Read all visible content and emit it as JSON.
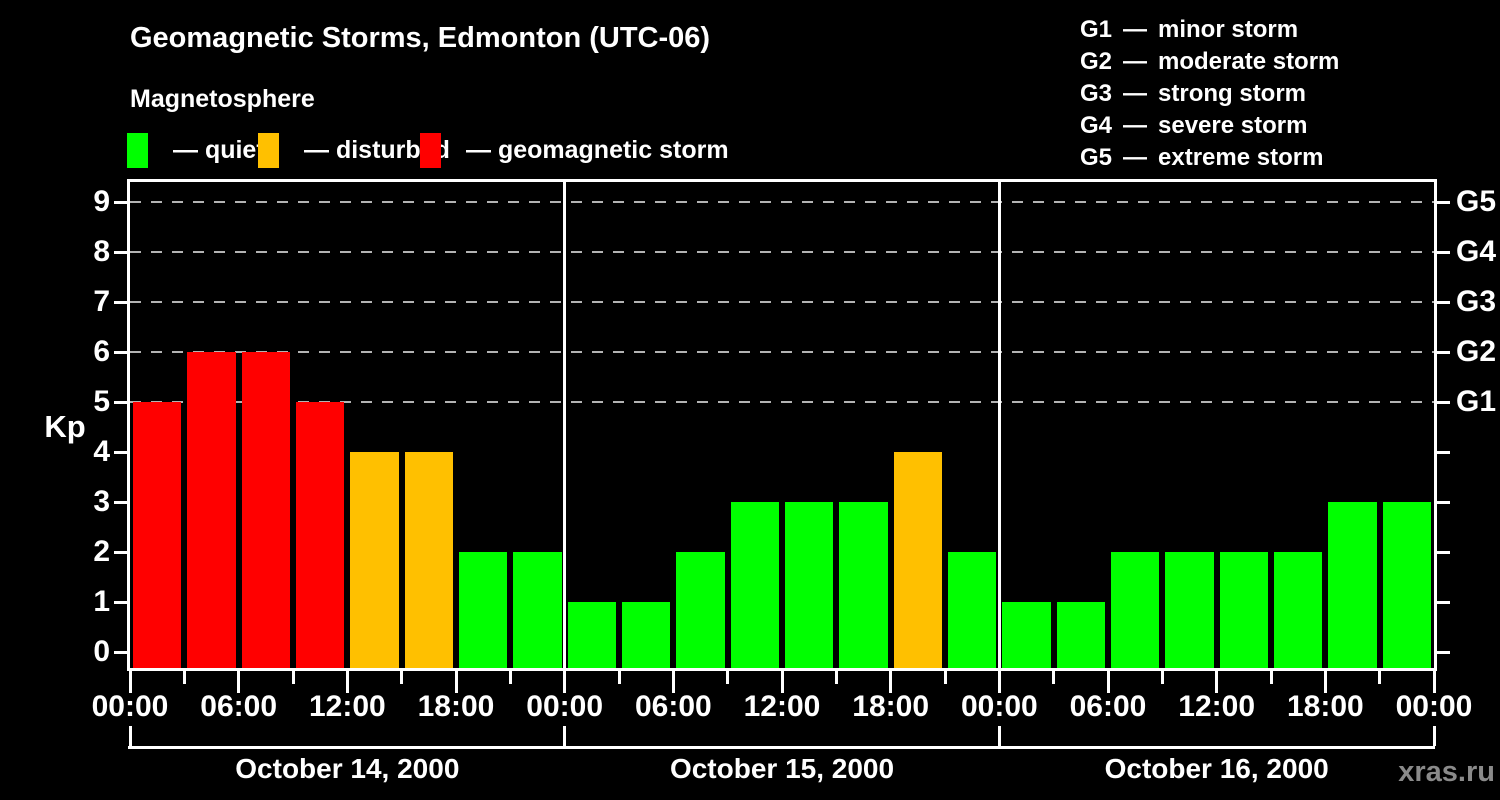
{
  "ui": {
    "title": "Geomagnetic Storms, Edmonton (UTC-06)",
    "subtitle": "Magnetosphere",
    "kp_axis_label": "Kp",
    "dash": "—",
    "watermark": "xras.ru"
  },
  "legend": {
    "items": [
      {
        "name": "quiet",
        "label": "— quiet",
        "color": "#00ff00"
      },
      {
        "name": "disturbed",
        "label": "— disturbed",
        "color": "#ffc000"
      },
      {
        "name": "storm",
        "label": "— geomagnetic storm",
        "color": "#ff0000"
      }
    ]
  },
  "g_scale": [
    {
      "code": "G1",
      "desc": "minor storm",
      "kp": 5
    },
    {
      "code": "G2",
      "desc": "moderate storm",
      "kp": 6
    },
    {
      "code": "G3",
      "desc": "strong storm",
      "kp": 7
    },
    {
      "code": "G4",
      "desc": "severe storm",
      "kp": 8
    },
    {
      "code": "G5",
      "desc": "extreme storm",
      "kp": 9
    }
  ],
  "chart_data": {
    "type": "bar",
    "title": "Geomagnetic Storms, Edmonton (UTC-06)",
    "ylabel": "Kp",
    "ylim": [
      0,
      9
    ],
    "yticks": [
      0,
      1,
      2,
      3,
      4,
      5,
      6,
      7,
      8,
      9
    ],
    "gridlines_at": [
      5,
      6,
      7,
      8,
      9
    ],
    "grid": "dashed",
    "right_axis_labels": [
      {
        "kp": 5,
        "label": "G1"
      },
      {
        "kp": 6,
        "label": "G2"
      },
      {
        "kp": 7,
        "label": "G3"
      },
      {
        "kp": 8,
        "label": "G4"
      },
      {
        "kp": 9,
        "label": "G5"
      }
    ],
    "bar_interval_hours": 3,
    "x_tick_labels_per_day": [
      "00:00",
      "06:00",
      "12:00",
      "18:00"
    ],
    "x_axis_end_label": "00:00",
    "days": [
      {
        "date": "October 14, 2000",
        "values": [
          5,
          6,
          6,
          5,
          4,
          4,
          2,
          2
        ]
      },
      {
        "date": "October 15, 2000",
        "values": [
          1,
          1,
          2,
          3,
          3,
          3,
          4,
          2
        ]
      },
      {
        "date": "October 16, 2000",
        "values": [
          1,
          1,
          2,
          2,
          2,
          2,
          3,
          3
        ]
      }
    ],
    "color_rule": {
      "quiet_kp_max": 3,
      "disturbed_kp": 4,
      "storm_kp_min": 5
    },
    "colors": {
      "quiet": "#00ff00",
      "disturbed": "#ffc000",
      "storm": "#ff0000",
      "axis": "#ffffff",
      "grid": "#b3b3b3",
      "background": "#000000",
      "watermark": "#8a8a8a"
    }
  }
}
